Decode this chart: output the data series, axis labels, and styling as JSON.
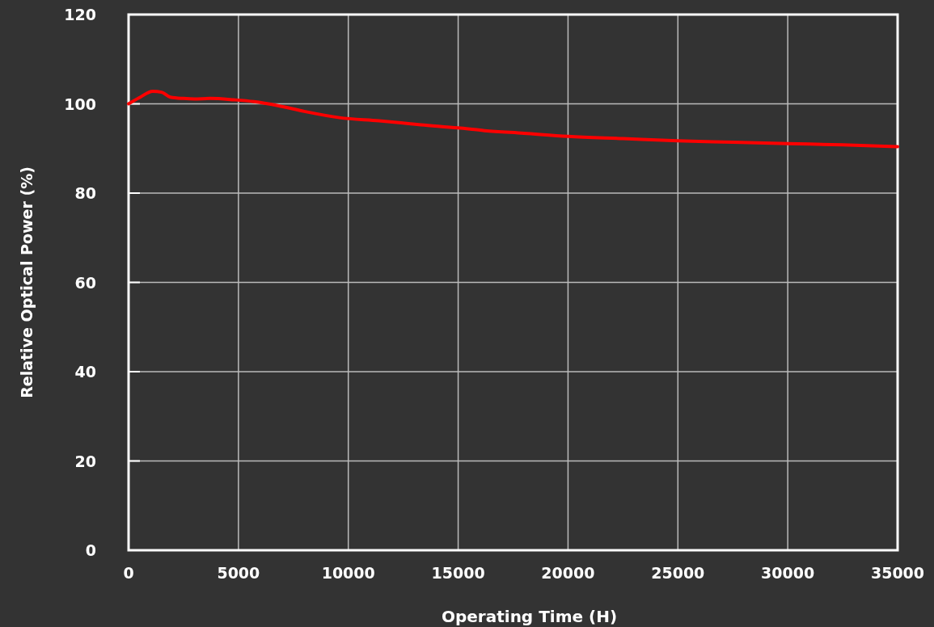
{
  "chart_data": {
    "type": "line",
    "xlabel": "Operating Time (H)",
    "ylabel": "Relative Optical Power (%)",
    "xlim": [
      0,
      35000
    ],
    "xticks": [
      0,
      5000,
      10000,
      15000,
      20000,
      25000,
      30000,
      35000
    ],
    "ylim": [
      0,
      120
    ],
    "yticks": [
      0,
      20,
      40,
      60,
      80,
      100,
      120
    ],
    "grid": true,
    "marker": "none",
    "line_style": "solid",
    "series": [
      {
        "color": "#ff0000",
        "x": [
          0,
          500,
          1100,
          1500,
          1900,
          2500,
          3000,
          3700,
          4800,
          5700,
          6800,
          8000,
          9600,
          11400,
          13300,
          15000,
          16200,
          18000,
          20000,
          22500,
          25000,
          27500,
          30000,
          32500,
          35000
        ],
        "values": [
          100,
          101.4,
          102.8,
          102.6,
          101.5,
          101.2,
          101.1,
          101.2,
          100.9,
          100.5,
          99.6,
          98.3,
          96.9,
          96.2,
          95.3,
          94.6,
          94.0,
          93.4,
          92.7,
          92.2,
          91.7,
          91.4,
          91.1,
          90.8,
          90.4
        ]
      }
    ]
  }
}
